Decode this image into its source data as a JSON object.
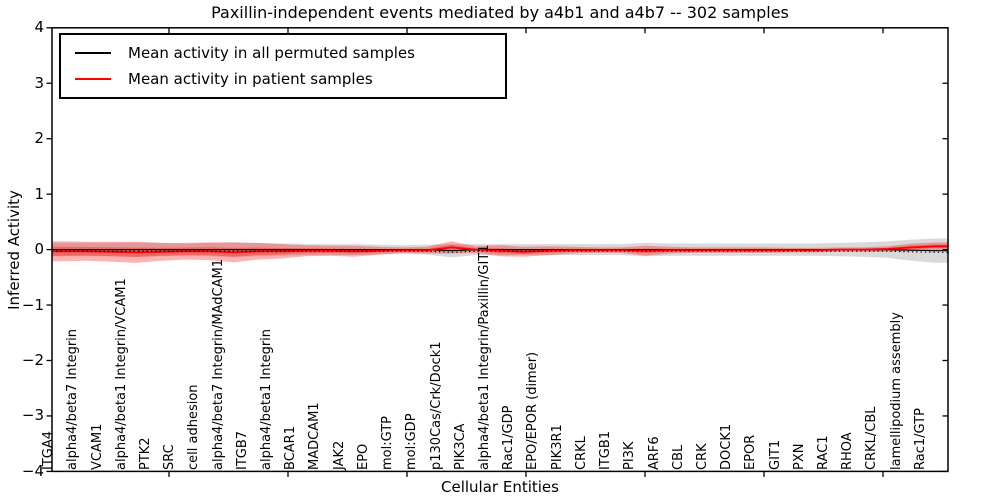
{
  "title": "Paxillin-independent events mediated by a4b1 and a4b7 -- 302 samples",
  "axes": {
    "ylabel": "Inferred Activity",
    "xlabel": "Cellular Entities",
    "ylim": [
      -4,
      4
    ],
    "yticks": [
      {
        "value": 4,
        "label": "4"
      },
      {
        "value": 3,
        "label": "3"
      },
      {
        "value": 2,
        "label": "2"
      },
      {
        "value": 1,
        "label": "1"
      },
      {
        "value": 0,
        "label": "0"
      },
      {
        "value": -1,
        "label": "−1"
      },
      {
        "value": -2,
        "label": "−2"
      },
      {
        "value": -3,
        "label": "−3"
      },
      {
        "value": -4,
        "label": "−4"
      }
    ]
  },
  "legend": {
    "items": [
      {
        "label": "Mean activity in all permuted samples",
        "color": "#000000"
      },
      {
        "label": "Mean activity in patient samples",
        "color": "#ff0000"
      }
    ],
    "position": "upper left"
  },
  "chart_data": {
    "type": "area",
    "title": "Paxillin-independent events mediated by a4b1 and a4b7 -- 302 samples",
    "xlabel": "Cellular Entities",
    "ylabel": "Inferred Activity",
    "ylim": [
      -4,
      4
    ],
    "grid": false,
    "legend_position": "upper left",
    "inner_band_factor": 0.45,
    "colors": {
      "permuted_line": "#000000",
      "permuted_band": "rgba(120,120,120,0.28)",
      "patient_line": "#ff0000",
      "patient_band": "rgba(255,0,0,0.30)"
    },
    "categories": [
      "ITGA4",
      "alpha4/beta7 Integrin",
      "VCAM1",
      "alpha4/beta1 Integrin/VCAM1",
      "PTK2",
      "SRC",
      "cell adhesion",
      "alpha4/beta7 Integrin/MAdCAM1",
      "ITGB7",
      "alpha4/beta1 Integrin",
      "BCAR1",
      "MADCAM1",
      "JAK2",
      "EPO",
      "mol:GTP",
      "mol:GDP",
      "p130Cas/Crk/Dock1",
      "PIK3CA",
      "alpha4/beta1 Integrin/Paxillin/GIT1",
      "Rac1/GDP",
      "EPO/EPOR (dimer)",
      "PIK3R1",
      "CRKL",
      "ITGB1",
      "PI3K",
      "ARF6",
      "CBL",
      "CRK",
      "DOCK1",
      "EPOR",
      "GIT1",
      "PXN",
      "RAC1",
      "RHOA",
      "CRKL/CBL",
      "lamellipodium assembly",
      "Rac1/GTP"
    ],
    "series": [
      {
        "name": "Mean activity in all permuted samples",
        "style": "mean line with shaded band",
        "means": [
          0,
          0,
          0,
          0,
          0,
          0,
          0,
          0,
          0,
          0,
          0,
          0,
          0,
          0,
          0,
          0,
          -0.02,
          0,
          0,
          0,
          0,
          0,
          0,
          0,
          0,
          0,
          0,
          0,
          0,
          0,
          0,
          0,
          0,
          0,
          0,
          -0.01,
          -0.02
        ],
        "band_half_widths": [
          0.12,
          0.12,
          0.12,
          0.13,
          0.12,
          0.11,
          0.12,
          0.13,
          0.12,
          0.11,
          0.1,
          0.1,
          0.1,
          0.09,
          0.08,
          0.09,
          0.12,
          0.1,
          0.1,
          0.1,
          0.1,
          0.1,
          0.1,
          0.1,
          0.12,
          0.11,
          0.11,
          0.11,
          0.11,
          0.11,
          0.11,
          0.11,
          0.12,
          0.13,
          0.15,
          0.19,
          0.22
        ]
      },
      {
        "name": "Mean activity in patient samples",
        "style": "mean line with shaded band",
        "means": [
          -0.03,
          -0.03,
          -0.04,
          -0.05,
          -0.04,
          -0.03,
          -0.03,
          -0.05,
          -0.03,
          -0.03,
          -0.02,
          -0.02,
          -0.03,
          -0.02,
          -0.01,
          -0.01,
          0.04,
          0,
          -0.02,
          -0.04,
          -0.02,
          -0.01,
          -0.01,
          -0.01,
          -0.02,
          -0.01,
          -0.01,
          -0.01,
          -0.01,
          -0.01,
          -0.01,
          -0.01,
          0,
          0,
          0.01,
          0.04,
          0.06
        ],
        "band_half_widths": [
          0.18,
          0.17,
          0.18,
          0.19,
          0.16,
          0.15,
          0.16,
          0.18,
          0.15,
          0.13,
          0.1,
          0.09,
          0.1,
          0.07,
          0.05,
          0.06,
          0.11,
          0.06,
          0.1,
          0.09,
          0.08,
          0.06,
          0.05,
          0.05,
          0.09,
          0.06,
          0.05,
          0.05,
          0.05,
          0.05,
          0.04,
          0.04,
          0.04,
          0.04,
          0.05,
          0.07,
          0.07
        ]
      }
    ]
  }
}
